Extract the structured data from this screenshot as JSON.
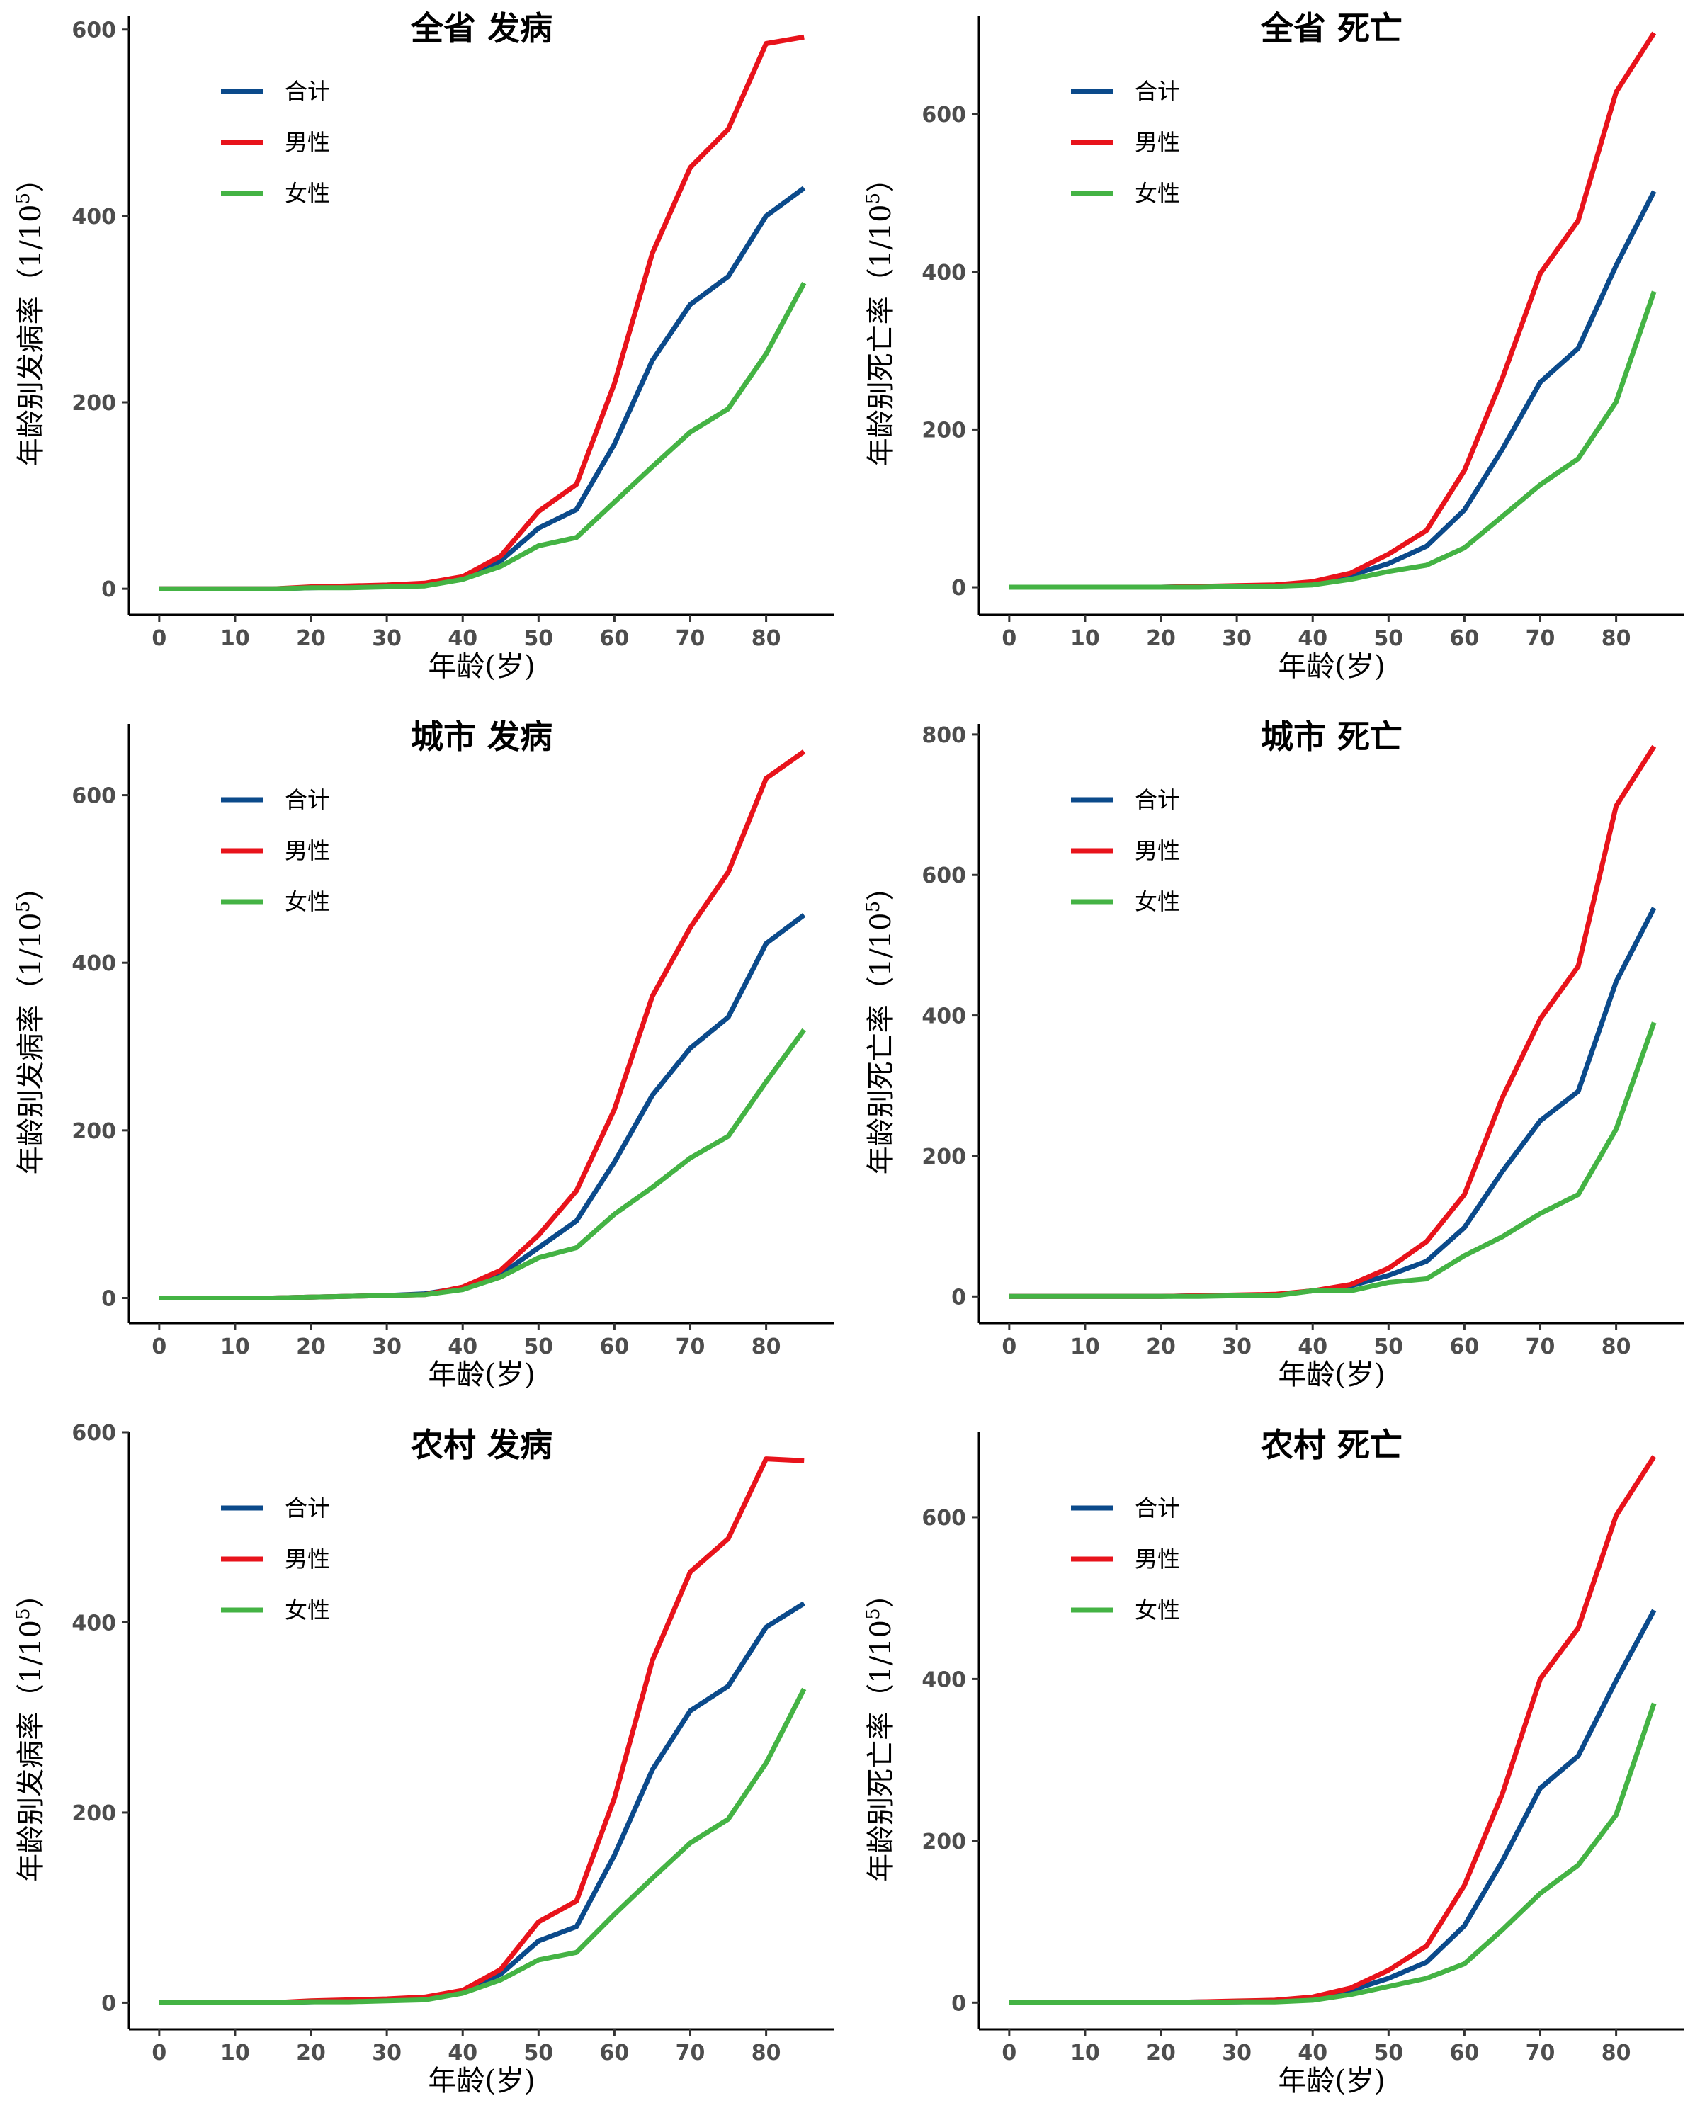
{
  "colors": {
    "total": "#0b4a8b",
    "male": "#e8131b",
    "female": "#44b344"
  },
  "chart_data": [
    {
      "type": "line",
      "title": "全省 发病",
      "xlabel": "年龄(岁)",
      "ylabel": "年龄别发病率（1/10",
      "ylabel_sup": "5",
      "ylabel_end": "）",
      "x": [
        0,
        5,
        10,
        15,
        20,
        25,
        30,
        35,
        40,
        45,
        50,
        55,
        60,
        65,
        70,
        75,
        80,
        85
      ],
      "xticks": [
        0,
        10,
        20,
        30,
        40,
        50,
        60,
        70,
        80
      ],
      "xlim": [
        -4,
        89
      ],
      "ylim": [
        -28,
        615
      ],
      "yticks": [
        0,
        200,
        400,
        600
      ],
      "series": [
        {
          "name": "合计",
          "key": "total",
          "values": [
            0,
            0,
            0,
            0,
            1,
            2,
            3,
            5,
            12,
            30,
            65,
            85,
            155,
            245,
            305,
            335,
            400,
            430
          ]
        },
        {
          "name": "男性",
          "key": "male",
          "values": [
            0,
            0,
            0,
            0,
            2,
            3,
            4,
            6,
            13,
            35,
            83,
            112,
            220,
            360,
            452,
            493,
            585,
            592
          ]
        },
        {
          "name": "女性",
          "key": "female",
          "values": [
            0,
            0,
            0,
            0,
            1,
            1,
            2,
            3,
            10,
            24,
            46,
            55,
            93,
            131,
            168,
            193,
            252,
            328
          ]
        }
      ]
    },
    {
      "type": "line",
      "title": "全省 死亡",
      "xlabel": "年龄(岁)",
      "ylabel": "年龄别死亡率（1/10",
      "ylabel_sup": "5",
      "ylabel_end": "）",
      "x": [
        0,
        5,
        10,
        15,
        20,
        25,
        30,
        35,
        40,
        45,
        50,
        55,
        60,
        65,
        70,
        75,
        80,
        85
      ],
      "xticks": [
        0,
        10,
        20,
        30,
        40,
        50,
        60,
        70,
        80
      ],
      "xlim": [
        -4,
        89
      ],
      "ylim": [
        -35,
        725
      ],
      "yticks": [
        0,
        200,
        400,
        600
      ],
      "series": [
        {
          "name": "合计",
          "key": "total",
          "values": [
            0,
            0,
            0,
            0,
            0,
            1,
            1,
            2,
            5,
            15,
            30,
            52,
            98,
            175,
            260,
            303,
            408,
            502
          ]
        },
        {
          "name": "男性",
          "key": "male",
          "values": [
            0,
            0,
            0,
            0,
            0,
            1,
            2,
            3,
            7,
            18,
            42,
            72,
            148,
            265,
            398,
            465,
            628,
            703
          ]
        },
        {
          "name": "女性",
          "key": "female",
          "values": [
            0,
            0,
            0,
            0,
            0,
            0,
            1,
            1,
            3,
            10,
            20,
            28,
            50,
            90,
            130,
            163,
            235,
            375
          ]
        }
      ]
    },
    {
      "type": "line",
      "title": "城市 发病",
      "xlabel": "年龄(岁)",
      "ylabel": "年龄别发病率（1/10",
      "ylabel_sup": "5",
      "ylabel_end": "）",
      "x": [
        0,
        5,
        10,
        15,
        20,
        25,
        30,
        35,
        40,
        45,
        50,
        55,
        60,
        65,
        70,
        75,
        80,
        85
      ],
      "xticks": [
        0,
        10,
        20,
        30,
        40,
        50,
        60,
        70,
        80
      ],
      "xlim": [
        -4,
        89
      ],
      "ylim": [
        -30,
        685
      ],
      "yticks": [
        0,
        200,
        400,
        600
      ],
      "series": [
        {
          "name": "合计",
          "key": "total",
          "values": [
            0,
            0,
            0,
            0,
            1,
            2,
            3,
            5,
            12,
            28,
            60,
            92,
            162,
            242,
            298,
            335,
            423,
            457
          ]
        },
        {
          "name": "男性",
          "key": "male",
          "values": [
            0,
            0,
            0,
            0,
            1,
            2,
            3,
            4,
            13,
            33,
            75,
            128,
            225,
            360,
            442,
            508,
            620,
            652
          ]
        },
        {
          "name": "女性",
          "key": "female",
          "values": [
            0,
            0,
            0,
            0,
            1,
            2,
            3,
            4,
            10,
            25,
            48,
            60,
            100,
            132,
            167,
            193,
            258,
            320
          ]
        }
      ]
    },
    {
      "type": "line",
      "title": "城市 死亡",
      "xlabel": "年龄(岁)",
      "ylabel": "年龄别死亡率（1/10",
      "ylabel_sup": "5",
      "ylabel_end": "）",
      "x": [
        0,
        5,
        10,
        15,
        20,
        25,
        30,
        35,
        40,
        45,
        50,
        55,
        60,
        65,
        70,
        75,
        80,
        85
      ],
      "xticks": [
        0,
        10,
        20,
        30,
        40,
        50,
        60,
        70,
        80
      ],
      "xlim": [
        -4,
        89
      ],
      "ylim": [
        -38,
        815
      ],
      "yticks": [
        0,
        200,
        400,
        600,
        800
      ],
      "series": [
        {
          "name": "合计",
          "key": "total",
          "values": [
            0,
            0,
            0,
            0,
            0,
            1,
            1,
            2,
            8,
            15,
            30,
            50,
            98,
            178,
            250,
            292,
            448,
            553
          ]
        },
        {
          "name": "男性",
          "key": "male",
          "values": [
            0,
            0,
            0,
            0,
            0,
            1,
            2,
            3,
            8,
            17,
            40,
            78,
            145,
            283,
            395,
            470,
            698,
            783
          ]
        },
        {
          "name": "女性",
          "key": "female",
          "values": [
            0,
            0,
            0,
            0,
            0,
            0,
            1,
            1,
            8,
            8,
            20,
            25,
            58,
            85,
            118,
            145,
            238,
            390
          ]
        }
      ]
    },
    {
      "type": "line",
      "title": "农村 发病",
      "xlabel": "年龄(岁)",
      "ylabel": "年龄别发病率（1/10",
      "ylabel_sup": "5",
      "ylabel_end": "）",
      "x": [
        0,
        5,
        10,
        15,
        20,
        25,
        30,
        35,
        40,
        45,
        50,
        55,
        60,
        65,
        70,
        75,
        80,
        85
      ],
      "xticks": [
        0,
        10,
        20,
        30,
        40,
        50,
        60,
        70,
        80
      ],
      "xlim": [
        -4,
        89
      ],
      "ylim": [
        -28,
        600
      ],
      "yticks": [
        0,
        200,
        400,
        600
      ],
      "series": [
        {
          "name": "合计",
          "key": "total",
          "values": [
            0,
            0,
            0,
            0,
            1,
            2,
            3,
            5,
            12,
            30,
            65,
            80,
            155,
            245,
            307,
            333,
            395,
            420
          ]
        },
        {
          "name": "男性",
          "key": "male",
          "values": [
            0,
            0,
            0,
            0,
            2,
            3,
            4,
            6,
            13,
            35,
            85,
            107,
            215,
            360,
            453,
            488,
            572,
            570
          ]
        },
        {
          "name": "女性",
          "key": "female",
          "values": [
            0,
            0,
            0,
            0,
            1,
            1,
            2,
            3,
            10,
            24,
            45,
            53,
            93,
            131,
            168,
            193,
            252,
            330
          ]
        }
      ]
    },
    {
      "type": "line",
      "title": "农村 死亡",
      "xlabel": "年龄(岁)",
      "ylabel": "年龄别死亡率（1/10",
      "ylabel_sup": "5",
      "ylabel_end": "）",
      "x": [
        0,
        5,
        10,
        15,
        20,
        25,
        30,
        35,
        40,
        45,
        50,
        55,
        60,
        65,
        70,
        75,
        80,
        85
      ],
      "xticks": [
        0,
        10,
        20,
        30,
        40,
        50,
        60,
        70,
        80
      ],
      "xlim": [
        -4,
        89
      ],
      "ylim": [
        -33,
        705
      ],
      "yticks": [
        0,
        200,
        400,
        600
      ],
      "series": [
        {
          "name": "合计",
          "key": "total",
          "values": [
            0,
            0,
            0,
            0,
            0,
            1,
            1,
            2,
            5,
            15,
            30,
            50,
            95,
            175,
            265,
            305,
            398,
            485
          ]
        },
        {
          "name": "男性",
          "key": "male",
          "values": [
            0,
            0,
            0,
            0,
            0,
            1,
            2,
            3,
            7,
            18,
            40,
            70,
            145,
            258,
            400,
            463,
            602,
            675
          ]
        },
        {
          "name": "女性",
          "key": "female",
          "values": [
            0,
            0,
            0,
            0,
            0,
            0,
            1,
            1,
            3,
            10,
            20,
            30,
            48,
            90,
            135,
            170,
            232,
            370
          ]
        }
      ]
    }
  ]
}
